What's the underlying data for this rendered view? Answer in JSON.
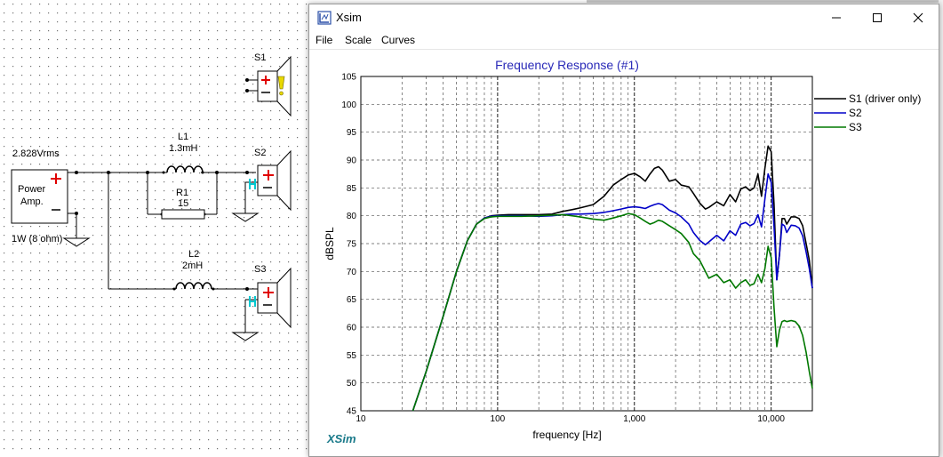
{
  "window": {
    "title": "Xsim",
    "icons": {
      "app": "xsim-app-icon",
      "minimize": "minimize-icon",
      "maximize": "maximize-icon",
      "close": "close-icon"
    }
  },
  "menu": {
    "items": [
      "File",
      "Scale",
      "Curves"
    ]
  },
  "schematic": {
    "source": {
      "voltage": "2.828Vrms",
      "label_line1": "Power",
      "label_line2": "Amp.",
      "power": "1W (8 ohm)"
    },
    "L1": {
      "name": "L1",
      "value": "1.3mH"
    },
    "R1": {
      "name": "R1",
      "value": "15"
    },
    "L2": {
      "name": "L2",
      "value": "2mH"
    },
    "speakers": [
      "S1",
      "S2",
      "S3"
    ],
    "colors": {
      "plus": "#e00000",
      "minus": "#000000",
      "polarity_h": "#00c8d0",
      "warning": "#e8d800"
    }
  },
  "chart_data": {
    "type": "line",
    "title": "Frequency Response (#1)",
    "xlabel": "frequency [Hz]",
    "ylabel": "dBSPL",
    "xscale": "log",
    "xlim": [
      10,
      20000
    ],
    "ylim": [
      45,
      105
    ],
    "xtick_labels": [
      "10",
      "100",
      "1,000",
      "10,000"
    ],
    "ytick_labels": [
      "45",
      "50",
      "55",
      "60",
      "65",
      "70",
      "75",
      "80",
      "85",
      "90",
      "95",
      "100",
      "105"
    ],
    "grid": true,
    "legend_position": "right",
    "watermark": "XSim",
    "series": [
      {
        "name": "S1 (driver only)",
        "color": "#000000",
        "x": [
          24,
          30,
          40,
          50,
          60,
          70,
          80,
          90,
          100,
          120,
          150,
          200,
          250,
          300,
          350,
          400,
          500,
          600,
          700,
          800,
          900,
          1000,
          1100,
          1200,
          1300,
          1400,
          1500,
          1600,
          1800,
          2000,
          2200,
          2500,
          2700,
          3000,
          3300,
          3500,
          4000,
          4500,
          5000,
          5500,
          6000,
          6500,
          7000,
          7500,
          8000,
          8500,
          9000,
          9500,
          10000,
          10500,
          11000,
          11500,
          12000,
          12500,
          13000,
          14000,
          15000,
          16000,
          17000,
          18000,
          19000,
          20000
        ],
        "y": [
          45,
          52,
          62,
          70,
          75.5,
          78.5,
          79.6,
          80,
          80.1,
          80.2,
          80.2,
          80.2,
          80.3,
          80.8,
          81.1,
          81.4,
          82,
          83.5,
          85.5,
          86.5,
          87.3,
          87.6,
          87,
          86.2,
          87.5,
          88.5,
          88.8,
          88.2,
          86.2,
          86.5,
          85.5,
          85.2,
          84,
          82.3,
          81.2,
          81.5,
          82.5,
          81.8,
          83.8,
          82.5,
          84.8,
          85.2,
          84.5,
          85,
          87.5,
          83.5,
          88.5,
          92.5,
          91.5,
          82,
          68.5,
          73,
          79.5,
          79.5,
          78.5,
          79.8,
          79.8,
          79.5,
          78.2,
          75,
          72,
          67
        ]
      },
      {
        "name": "S2",
        "color": "#0000c8",
        "x": [
          24,
          30,
          40,
          50,
          60,
          70,
          80,
          90,
          100,
          120,
          150,
          200,
          250,
          300,
          350,
          400,
          500,
          600,
          700,
          800,
          900,
          1000,
          1100,
          1200,
          1300,
          1400,
          1500,
          1600,
          1800,
          2000,
          2200,
          2500,
          2700,
          3000,
          3300,
          3500,
          4000,
          4500,
          5000,
          5500,
          6000,
          6500,
          7000,
          7500,
          8000,
          8500,
          9000,
          9500,
          10000,
          10500,
          11000,
          11500,
          12000,
          12500,
          13000,
          14000,
          15000,
          16000,
          17000,
          18000,
          19000,
          20000
        ],
        "y": [
          45,
          52,
          62,
          70,
          75.5,
          78.5,
          79.6,
          79.9,
          80,
          80,
          80,
          79.9,
          80,
          80.2,
          80.3,
          80.3,
          80.4,
          80.6,
          80.9,
          81.2,
          81.5,
          81.6,
          81.5,
          81.3,
          81.7,
          82,
          82.2,
          82,
          81,
          80.5,
          79.8,
          78.5,
          77,
          75.6,
          74.8,
          75.3,
          76.5,
          75.5,
          77.3,
          76.5,
          78.5,
          78.8,
          78.2,
          78.6,
          80.2,
          78,
          83,
          87.5,
          86,
          78,
          68.5,
          73,
          78.5,
          78.2,
          77,
          78.3,
          78.2,
          77.8,
          76.4,
          73.5,
          70.5,
          67
        ]
      },
      {
        "name": "S3",
        "color": "#007800",
        "x": [
          24,
          30,
          40,
          50,
          60,
          70,
          80,
          90,
          100,
          120,
          150,
          200,
          250,
          300,
          350,
          400,
          500,
          600,
          700,
          800,
          900,
          1000,
          1100,
          1200,
          1300,
          1400,
          1500,
          1600,
          1800,
          2000,
          2200,
          2500,
          2700,
          3000,
          3300,
          3500,
          4000,
          4500,
          5000,
          5500,
          6000,
          6500,
          7000,
          7500,
          8000,
          8500,
          9000,
          9500,
          10000,
          10500,
          11000,
          11500,
          12000,
          12500,
          13000,
          14000,
          15000,
          16000,
          17000,
          18000,
          19000,
          20000
        ],
        "y": [
          45,
          52,
          62,
          70,
          75.5,
          78.5,
          79.5,
          79.8,
          79.9,
          79.9,
          79.9,
          80,
          80.1,
          80.2,
          80,
          79.8,
          79.4,
          79.2,
          79.6,
          80,
          80.4,
          80.2,
          79.6,
          79,
          78.5,
          78.8,
          79.2,
          79,
          78.2,
          77.5,
          76.8,
          75.2,
          73.2,
          72,
          70,
          68.8,
          69.5,
          68,
          68.5,
          67,
          68,
          68.5,
          67.5,
          67.8,
          69.5,
          68,
          70.5,
          74.5,
          72.5,
          63.5,
          56.5,
          59.5,
          61,
          61.2,
          61,
          61.2,
          61,
          60.2,
          58.5,
          55.5,
          52,
          49
        ]
      }
    ]
  }
}
